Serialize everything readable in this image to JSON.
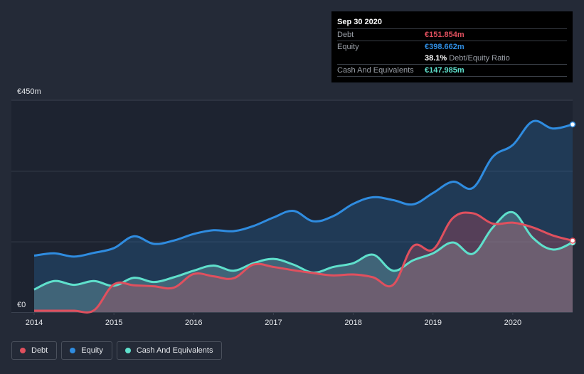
{
  "chart_data": {
    "type": "area",
    "title": "",
    "y_axis": {
      "top_label": "€450m",
      "bottom_label": "€0",
      "ylim": [
        0,
        450
      ],
      "unit": "€m"
    },
    "x_axis": {
      "tick_labels": [
        "2014",
        "2015",
        "2016",
        "2017",
        "2018",
        "2019",
        "2020"
      ],
      "xlim": [
        2014.0,
        2020.75
      ]
    },
    "series": [
      {
        "name": "Equity",
        "color": "#2f8ce0",
        "points": [
          [
            2014.0,
            120
          ],
          [
            2014.25,
            125
          ],
          [
            2014.5,
            118
          ],
          [
            2014.75,
            126
          ],
          [
            2015.0,
            136
          ],
          [
            2015.25,
            161
          ],
          [
            2015.5,
            145
          ],
          [
            2015.75,
            152
          ],
          [
            2016.0,
            166
          ],
          [
            2016.25,
            174
          ],
          [
            2016.5,
            172
          ],
          [
            2016.75,
            183
          ],
          [
            2017.0,
            201
          ],
          [
            2017.25,
            215
          ],
          [
            2017.5,
            193
          ],
          [
            2017.75,
            204
          ],
          [
            2018.0,
            230
          ],
          [
            2018.25,
            244
          ],
          [
            2018.5,
            238
          ],
          [
            2018.75,
            229
          ],
          [
            2019.0,
            253
          ],
          [
            2019.25,
            277
          ],
          [
            2019.5,
            264
          ],
          [
            2019.75,
            330
          ],
          [
            2020.0,
            355
          ],
          [
            2020.25,
            405
          ],
          [
            2020.5,
            390
          ],
          [
            2020.75,
            398.662
          ]
        ]
      },
      {
        "name": "Cash And Equivalents",
        "color": "#5fe0cc",
        "points": [
          [
            2014.0,
            48
          ],
          [
            2014.25,
            66
          ],
          [
            2014.5,
            58
          ],
          [
            2014.75,
            66
          ],
          [
            2015.0,
            56
          ],
          [
            2015.25,
            73
          ],
          [
            2015.5,
            64
          ],
          [
            2015.75,
            74
          ],
          [
            2016.0,
            88
          ],
          [
            2016.25,
            99
          ],
          [
            2016.5,
            88
          ],
          [
            2016.75,
            104
          ],
          [
            2017.0,
            113
          ],
          [
            2017.25,
            101
          ],
          [
            2017.5,
            84
          ],
          [
            2017.75,
            96
          ],
          [
            2018.0,
            104
          ],
          [
            2018.25,
            122
          ],
          [
            2018.5,
            88
          ],
          [
            2018.75,
            110
          ],
          [
            2019.0,
            125
          ],
          [
            2019.25,
            148
          ],
          [
            2019.5,
            124
          ],
          [
            2019.75,
            180
          ],
          [
            2020.0,
            212
          ],
          [
            2020.25,
            158
          ],
          [
            2020.5,
            133
          ],
          [
            2020.75,
            147.985
          ]
        ]
      },
      {
        "name": "Debt",
        "color": "#e0505e",
        "points": [
          [
            2014.0,
            3
          ],
          [
            2014.25,
            3
          ],
          [
            2014.5,
            3
          ],
          [
            2014.75,
            4
          ],
          [
            2015.0,
            59
          ],
          [
            2015.25,
            57
          ],
          [
            2015.5,
            55
          ],
          [
            2015.75,
            52
          ],
          [
            2016.0,
            81
          ],
          [
            2016.25,
            76
          ],
          [
            2016.5,
            72
          ],
          [
            2016.75,
            101
          ],
          [
            2017.0,
            96
          ],
          [
            2017.25,
            89
          ],
          [
            2017.5,
            83
          ],
          [
            2017.75,
            78
          ],
          [
            2018.0,
            80
          ],
          [
            2018.25,
            74
          ],
          [
            2018.5,
            58
          ],
          [
            2018.75,
            140
          ],
          [
            2019.0,
            133
          ],
          [
            2019.25,
            200
          ],
          [
            2019.5,
            210
          ],
          [
            2019.75,
            188
          ],
          [
            2020.0,
            190
          ],
          [
            2020.25,
            180
          ],
          [
            2020.5,
            163
          ],
          [
            2020.75,
            151.854
          ]
        ]
      }
    ]
  },
  "tooltip": {
    "date": "Sep 30 2020",
    "rows": [
      {
        "label": "Debt",
        "value": "€151.854m",
        "color": "#e0505e"
      },
      {
        "label": "Equity",
        "value": "€398.662m",
        "color": "#2f8ce0"
      }
    ],
    "ratio_value": "38.1%",
    "ratio_label": "Debt/Equity Ratio",
    "cash": {
      "label": "Cash And Equivalents",
      "value": "€147.985m",
      "color": "#5fe0cc"
    }
  },
  "legend": {
    "items": [
      {
        "label": "Debt",
        "color": "#e0505e"
      },
      {
        "label": "Equity",
        "color": "#2f8ce0"
      },
      {
        "label": "Cash And Equivalents",
        "color": "#5fe0cc"
      }
    ]
  }
}
